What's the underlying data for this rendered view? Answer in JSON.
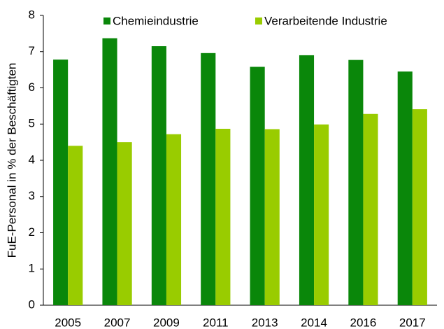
{
  "chart_data": {
    "type": "bar",
    "y_label": "FuE-Personal in % der Beschäftigten",
    "categories": [
      "2005",
      "2007",
      "2009",
      "2011",
      "2013",
      "2014",
      "2016",
      "2017"
    ],
    "series": [
      {
        "name": "Chemieindustrie",
        "color": "#0a870a",
        "values": [
          6.78,
          7.37,
          7.15,
          6.96,
          6.58,
          6.9,
          6.77,
          6.45
        ]
      },
      {
        "name": "Verarbeitende Industrie",
        "color": "#99cc00",
        "values": [
          4.4,
          4.5,
          4.72,
          4.87,
          4.86,
          4.99,
          5.28,
          5.41
        ]
      }
    ],
    "ylim": [
      0,
      8
    ],
    "yticks": [
      0,
      1,
      2,
      3,
      4,
      5,
      6,
      7,
      8
    ],
    "grid": false,
    "legend": "top"
  }
}
